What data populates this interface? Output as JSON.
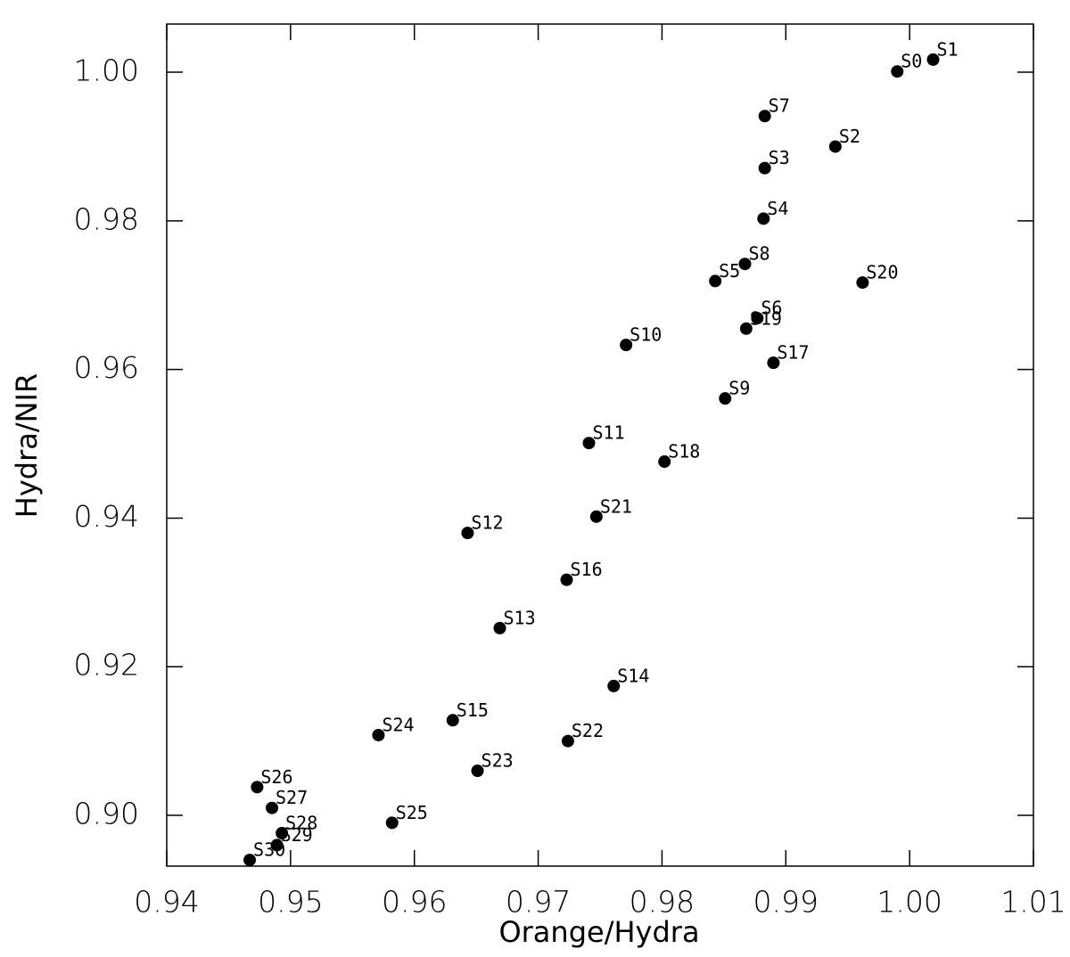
{
  "chart_data": {
    "type": "scatter",
    "xlabel": "Orange/Hydra",
    "ylabel": "Hydra/NIR",
    "xlim": [
      0.94,
      1.01
    ],
    "ylim": [
      0.89317,
      1.00648
    ],
    "xticks": [
      0.94,
      0.95,
      0.96,
      0.97,
      0.98,
      0.99,
      {
        "value": 1.0,
        "label": "1.00"
      },
      1.01
    ],
    "yticks": [
      {
        "value": 0.9,
        "label": "0.90"
      },
      0.92,
      0.94,
      0.96,
      0.98,
      {
        "value": 1.0,
        "label": "1.00"
      }
    ],
    "color": "#000000",
    "labels": [
      "S0",
      "S1",
      "S7",
      "S2",
      "S3",
      "S4",
      "S8",
      "S5",
      "S20",
      "S6",
      "S19",
      "S10",
      "S17",
      "S9",
      "S11",
      "S18",
      "S21",
      "S12",
      "S16",
      "S13",
      "S14",
      "S15",
      "S24",
      "S22",
      "S23",
      "S26",
      "S27",
      "S25",
      "S28",
      "S29",
      "S30"
    ],
    "x": [
      0.999,
      1.0019,
      0.9883,
      0.994,
      0.9883,
      0.9882,
      0.9867,
      0.9843,
      0.9962,
      0.9877,
      0.9868,
      0.9771,
      0.989,
      0.9851,
      0.9741,
      0.9802,
      0.9747,
      0.9643,
      0.9723,
      0.9669,
      0.9761,
      0.9631,
      0.9571,
      0.9724,
      0.9651,
      0.9473,
      0.9485,
      0.9582,
      0.9493,
      0.9489,
      0.9467
    ],
    "y": [
      1.0001,
      1.0017,
      0.9941,
      0.99,
      0.9871,
      0.9803,
      0.9742,
      0.9719,
      0.9717,
      0.9669,
      0.9655,
      0.9633,
      0.9609,
      0.9561,
      0.9501,
      0.9476,
      0.9402,
      0.938,
      0.9317,
      0.9252,
      0.9174,
      0.9128,
      0.9108,
      0.91,
      0.906,
      0.9038,
      0.901,
      0.899,
      0.8976,
      0.896,
      0.894
    ]
  }
}
